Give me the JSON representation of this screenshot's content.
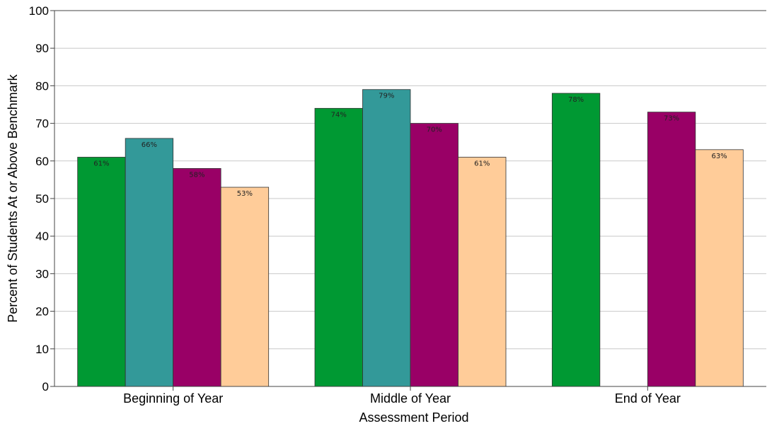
{
  "chart_data": {
    "type": "bar",
    "title": "",
    "xlabel": "Assessment Period",
    "ylabel": "Percent of Students At or Above Benchmark",
    "ylim": [
      0,
      100
    ],
    "yticks": [
      0,
      10,
      20,
      30,
      40,
      50,
      60,
      70,
      80,
      90,
      100
    ],
    "grid": true,
    "legend": "none",
    "categories": [
      "Beginning of Year",
      "Middle of Year",
      "End of Year"
    ],
    "series": [
      {
        "color": "#009933",
        "values": [
          61,
          74,
          78
        ],
        "labels": [
          "61%",
          "74%",
          "78%"
        ]
      },
      {
        "color": "#339999",
        "values": [
          66,
          79,
          null
        ],
        "labels": [
          "66%",
          "79%",
          ""
        ]
      },
      {
        "color": "#990066",
        "values": [
          58,
          70,
          73
        ],
        "labels": [
          "58%",
          "70%",
          "73%"
        ]
      },
      {
        "color": "#ffcc99",
        "values": [
          53,
          61,
          63
        ],
        "labels": [
          "53%",
          "61%",
          "63%"
        ]
      }
    ]
  }
}
